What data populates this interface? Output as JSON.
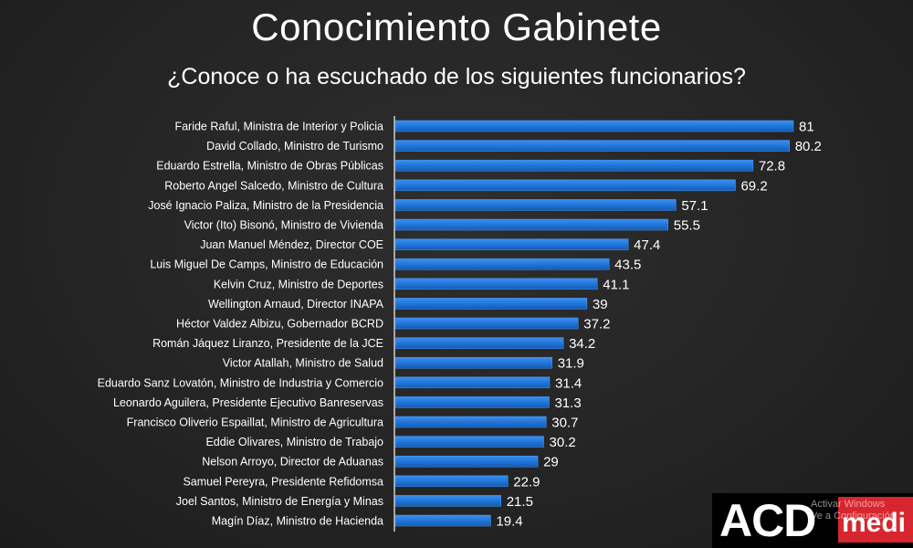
{
  "title": "Conocimiento Gabinete",
  "subtitle": "¿Conoce o ha escuchado de los siguientes funcionarios?",
  "chart_data": {
    "type": "bar",
    "orientation": "horizontal",
    "categories": [
      "Faride Raful, Ministra de Interior y Policia",
      "David Collado, Ministro de Turismo",
      "Eduardo Estrella, Ministro de Obras Públicas",
      "Roberto Angel Salcedo, Ministro de Cultura",
      "José Ignacio Paliza, Ministro de la Presidencia",
      "Victor (Ito) Bisonó, Ministro de Vivienda",
      "Juan Manuel Méndez, Director COE",
      "Luis Miguel De Camps, Ministro de Educación",
      "Kelvin Cruz, Ministro de Deportes",
      "Wellington Arnaud, Director INAPA",
      "Héctor Valdez Albizu, Gobernador BCRD",
      "Román Jáquez Liranzo, Presidente de la JCE",
      "Victor Atallah, Ministro de Salud",
      "Eduardo Sanz Lovatón, Ministro de Industria y Comercio",
      "Leonardo Aguilera, Presidente Ejecutivo Banreservas",
      "Francisco Oliverio Espaillat, Ministro de Agricultura",
      "Eddie Olivares, Ministro de Trabajo",
      "Nelson Arroyo, Director de Aduanas",
      "Samuel Pereyra, Presidente Refidomsa",
      "Joel Santos, Ministro de Energía y Minas",
      "Magín Díaz, Ministro de Hacienda"
    ],
    "values": [
      81,
      80.2,
      72.8,
      69.2,
      57.1,
      55.5,
      47.4,
      43.5,
      41.1,
      39,
      37.2,
      34.2,
      31.9,
      31.4,
      31.3,
      30.7,
      30.2,
      29,
      22.9,
      21.5,
      19.4
    ],
    "value_labels": [
      "81",
      "80.2",
      "72.8",
      "69.2",
      "57.1",
      "55.5",
      "47.4",
      "43.5",
      "41.1",
      "39",
      "37.2",
      "34.2",
      "31.9",
      "31.4",
      "31.3",
      "30.7",
      "30.2",
      "29",
      "22.9",
      "21.5",
      "19.4"
    ],
    "xlim": [
      0,
      81
    ],
    "bar_color": "#1f74d8",
    "title": "Conocimiento Gabinete",
    "subtitle": "¿Conoce o ha escuchado de los siguientes funcionarios?",
    "grid": false,
    "legend": "none"
  },
  "logo": {
    "part1": "ACD",
    "part2": "medi"
  },
  "watermark": {
    "line1": "Activar Windows",
    "line2": "Ve a Configuración"
  }
}
